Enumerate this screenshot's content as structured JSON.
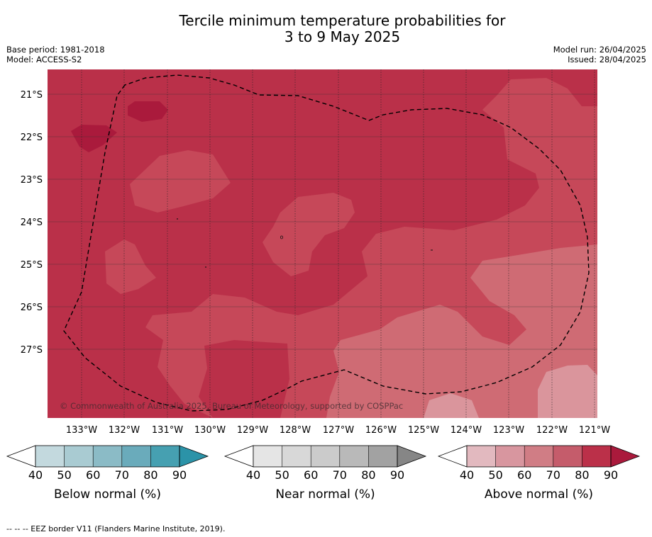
{
  "header": {
    "title_line1": "Tercile minimum temperature probabilities for",
    "title_line2": "3 to 9 May 2025",
    "base_period": "Base period: 1981-2018",
    "model": "Model: ACCESS-S2",
    "model_run": "Model run: 26/04/2025",
    "issued": "Issued: 28/04/2025"
  },
  "map": {
    "copyright": "© Commonwealth of Australia 2025, Bureau of Meteorology, supported by COSPPac",
    "lat_labels": [
      "21°S",
      "22°S",
      "23°S",
      "24°S",
      "25°S",
      "26°S",
      "27°S"
    ],
    "lon_labels": [
      "133°W",
      "132°W",
      "131°W",
      "130°W",
      "129°W",
      "128°W",
      "127°W",
      "126°W",
      "125°W",
      "124°W",
      "123°W",
      "122°W",
      "121°W"
    ],
    "colors": {
      "above_80": "#ba3049",
      "above_70": "#c64859",
      "above_60": "#cf6b74",
      "above_50": "#da959c",
      "above_90": "#aa1a3c"
    }
  },
  "colorbars": [
    {
      "title": "Below normal (%)",
      "ticks": [
        "40",
        "50",
        "60",
        "70",
        "80",
        "90"
      ],
      "colors": [
        "#c3d9de",
        "#a9cbd2",
        "#8bbbc6",
        "#6aabbb",
        "#46a0b1",
        "#2b93a8"
      ]
    },
    {
      "title": "Near normal (%)",
      "ticks": [
        "40",
        "50",
        "60",
        "70",
        "80",
        "90"
      ],
      "colors": [
        "#e5e5e5",
        "#d8d8d8",
        "#cbcbcb",
        "#b9b9b9",
        "#a2a2a2",
        "#868686"
      ]
    },
    {
      "title": "Above normal (%)",
      "ticks": [
        "40",
        "50",
        "60",
        "70",
        "80",
        "90"
      ],
      "colors": [
        "#e2b9bf",
        "#d8969f",
        "#d07d85",
        "#c55c6b",
        "#bb3049",
        "#aa1a3c"
      ]
    }
  ],
  "footnote": "-- -- -- EEZ border V11 (Flanders Marine Institute, 2019)."
}
